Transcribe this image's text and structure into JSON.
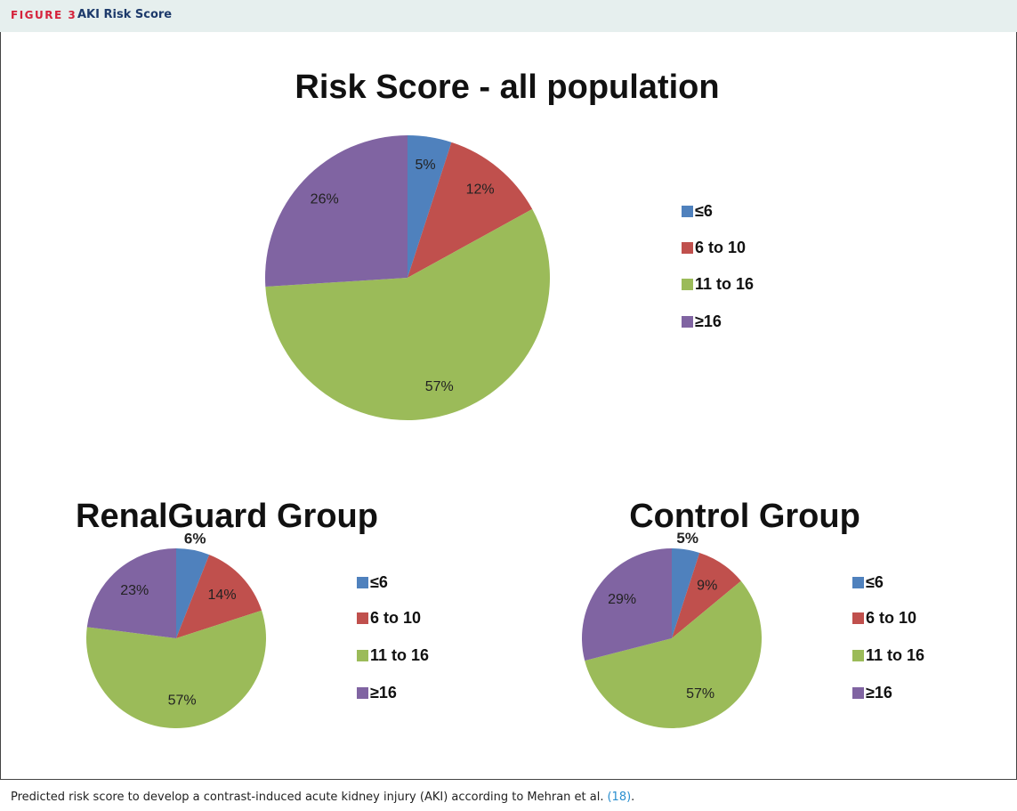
{
  "header": {
    "label": "FIGURE 3",
    "title": "AKI Risk Score"
  },
  "chart_data": [
    {
      "type": "pie",
      "title": "Risk Score - all population",
      "categories": [
        "≤6",
        "6 to 10",
        "11 to 16",
        "≥16"
      ],
      "values": [
        5,
        12,
        57,
        26
      ],
      "value_labels": [
        "5%",
        "12%",
        "57%",
        "26%"
      ],
      "colors": [
        "#4f81bd",
        "#c0504d",
        "#9bbb59",
        "#8064a2"
      ]
    },
    {
      "type": "pie",
      "title": "RenalGuard Group",
      "categories": [
        "≤6",
        "6 to 10",
        "11 to 16",
        "≥16"
      ],
      "values": [
        6,
        14,
        57,
        23
      ],
      "value_labels": [
        "6%",
        "14%",
        "57%",
        "23%"
      ],
      "colors": [
        "#4f81bd",
        "#c0504d",
        "#9bbb59",
        "#8064a2"
      ]
    },
    {
      "type": "pie",
      "title": "Control Group",
      "categories": [
        "≤6",
        "6 to 10",
        "11 to 16",
        "≥16"
      ],
      "values": [
        5,
        9,
        57,
        29
      ],
      "value_labels": [
        "5%",
        "9%",
        "57%",
        "29%"
      ],
      "colors": [
        "#4f81bd",
        "#c0504d",
        "#9bbb59",
        "#8064a2"
      ]
    }
  ],
  "caption": [
    "Predicted risk score to develop a contrast-induced acute kidney injury (AKI) according to Mehran et al.",
    "(18)",
    "."
  ]
}
